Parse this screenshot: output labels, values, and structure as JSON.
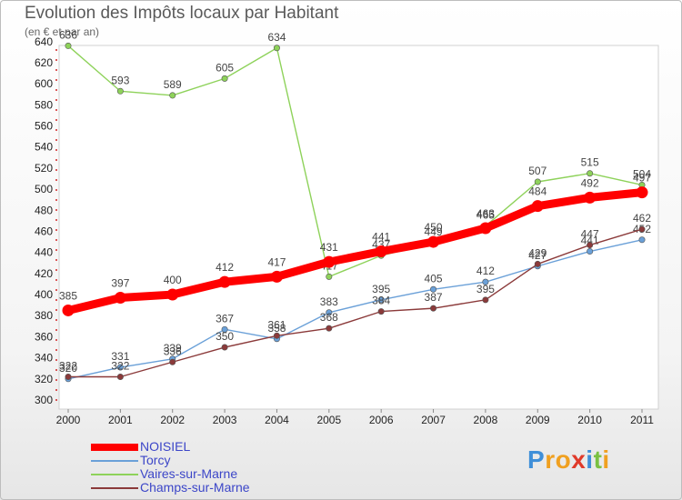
{
  "header": {
    "title": "Evolution des Impôts locaux par Habitant",
    "subtitle": "(en € et par an)"
  },
  "chart_data": {
    "type": "line",
    "title": "Evolution des Impôts locaux par Habitant",
    "subtitle": "(en € et par an)",
    "xlabel": "",
    "ylabel": "",
    "x": [
      "2000",
      "2001",
      "2002",
      "2003",
      "2004",
      "2005",
      "2006",
      "2007",
      "2008",
      "2009",
      "2010",
      "2011"
    ],
    "ylim": [
      300,
      640
    ],
    "yticks": [
      300,
      320,
      340,
      360,
      380,
      400,
      420,
      440,
      460,
      480,
      500,
      520,
      540,
      560,
      580,
      600,
      620,
      640
    ],
    "grid": false,
    "legend_position": "bottom-left",
    "series": [
      {
        "name": "NOISIEL",
        "color": "#ff0000",
        "values": [
          385,
          397,
          400,
          412,
          417,
          431,
          441,
          450,
          463,
          484,
          492,
          497
        ]
      },
      {
        "name": "Torcy",
        "color": "#6aa0d8",
        "values": [
          320,
          331,
          339,
          367,
          358,
          383,
          395,
          405,
          412,
          427,
          441,
          452
        ]
      },
      {
        "name": "Vaires-sur-Marne",
        "color": "#8ed25a",
        "values": [
          636,
          593,
          589,
          605,
          634,
          417,
          437,
          449,
          465,
          507,
          515,
          504
        ]
      },
      {
        "name": "Champs-sur-Marne",
        "color": "#8b3a3a",
        "values": [
          322,
          322,
          336,
          350,
          361,
          368,
          384,
          387,
          395,
          429,
          447,
          462
        ]
      }
    ]
  },
  "branding": {
    "logo_letters": [
      "P",
      "r",
      "o",
      "x",
      "i",
      "t",
      "i"
    ],
    "logo_colors": [
      "#3f8fd8",
      "#f0a020",
      "#f0a020",
      "#e03a2a",
      "#3f8fd8",
      "#7ac143",
      "#f0a020"
    ]
  }
}
